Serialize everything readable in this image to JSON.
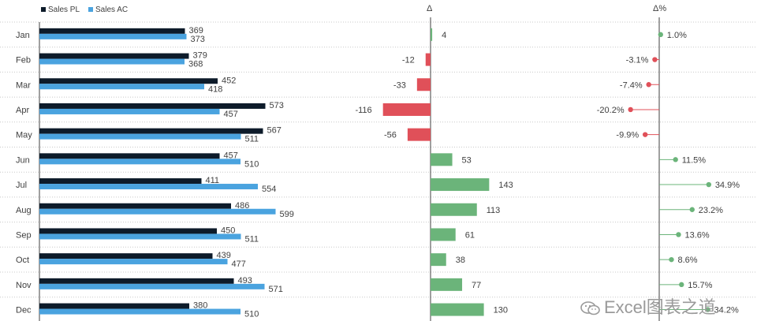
{
  "chart_data": {
    "type": "bar",
    "categories": [
      "Jan",
      "Feb",
      "Mar",
      "Apr",
      "May",
      "Jun",
      "Jul",
      "Aug",
      "Sep",
      "Oct",
      "Nov",
      "Dec"
    ],
    "series": [
      {
        "name": "Sales PL",
        "values": [
          369,
          379,
          452,
          573,
          567,
          457,
          411,
          486,
          450,
          439,
          493,
          380
        ]
      },
      {
        "name": "Sales AC",
        "values": [
          373,
          368,
          418,
          457,
          511,
          510,
          554,
          599,
          511,
          477,
          571,
          510
        ]
      }
    ],
    "variance": {
      "header": "Δ",
      "values": [
        4,
        -12,
        -33,
        -116,
        -56,
        53,
        143,
        113,
        61,
        38,
        77,
        130
      ]
    },
    "variance_pct": {
      "header": "Δ%",
      "values": [
        1.0,
        -3.1,
        -7.4,
        -20.2,
        -9.9,
        11.5,
        34.9,
        23.2,
        13.6,
        8.6,
        15.7,
        34.2
      ],
      "labels": [
        "1.0%",
        "-3.1%",
        "-7.4%",
        "-20.2%",
        "-9.9%",
        "11.5%",
        "34.9%",
        "23.2%",
        "13.6%",
        "8.6%",
        "15.7%",
        "34.2%"
      ]
    },
    "legend_position": "top-left",
    "grid": true,
    "colors": {
      "plan": "#0d1b2a",
      "actual": "#4aa3df",
      "positive": "#6bb47a",
      "negative": "#e05059",
      "axis": "#404040",
      "grid": "#c8c8c8"
    }
  },
  "watermark": "Excel图表之道"
}
